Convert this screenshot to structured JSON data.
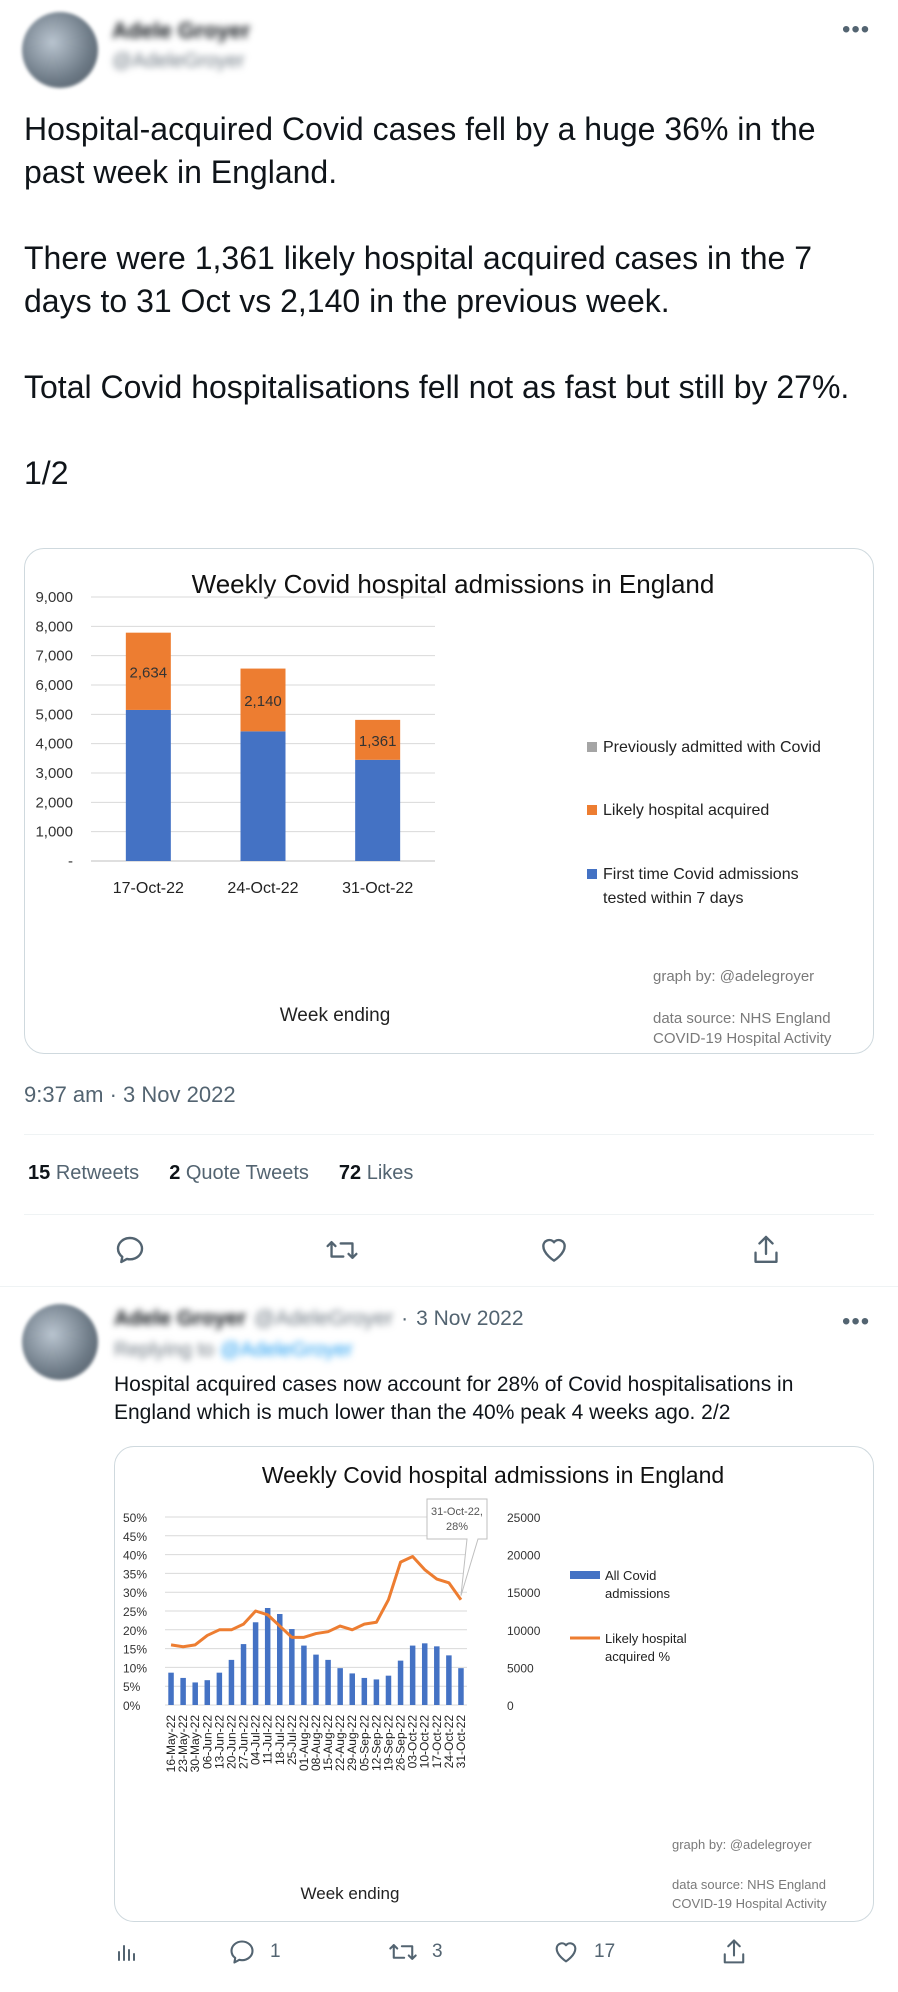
{
  "tweet1": {
    "author_name": "Adele Groyer",
    "author_handle": "@AdeleGroyer",
    "paragraphs": [
      "Hospital-acquired Covid cases fell by a huge 36% in the past week in England.",
      "There were 1,361 likely hospital acquired cases in the 7 days to 31 Oct vs 2,140 in the previous week.",
      "Total Covid hospitalisations fell not as fast but still by 27%.",
      "1/2"
    ],
    "timestamp": "9:37 am · 3 Nov 2022",
    "stats": {
      "retweets_count": "15",
      "retweets_label": "Retweets",
      "quotes_count": "2",
      "quotes_label": "Quote Tweets",
      "likes_count": "72",
      "likes_label": "Likes"
    }
  },
  "tweet2": {
    "author_name": "Adele Groyer",
    "author_handle": "@AdeleGroyer",
    "separator": "·",
    "date": "3 Nov 2022",
    "replying_prefix": "Replying to",
    "replying_handle": "@AdeleGroyer",
    "text": "Hospital acquired cases now account for 28% of Covid hospitalisations in England which is much lower than the 40% peak 4 weeks ago.  2/2",
    "replies": "1",
    "retweets": "3",
    "likes": "17"
  },
  "colors": {
    "blue": "#4472c4",
    "orange": "#ed7d31",
    "grey": "#a5a5a5",
    "accent": "#1d9bf0"
  },
  "chart_data": [
    {
      "type": "bar",
      "stacked": true,
      "title": "Weekly Covid hospital admissions in England",
      "xlabel": "Week ending",
      "ylabel": "",
      "ylim": [
        0,
        9000
      ],
      "yticks": [
        "-",
        "1,000",
        "2,000",
        "3,000",
        "4,000",
        "5,000",
        "6,000",
        "7,000",
        "8,000",
        "9,000"
      ],
      "categories": [
        "17-Oct-22",
        "24-Oct-22",
        "31-Oct-22"
      ],
      "series": [
        {
          "name": "First time Covid admissions tested within 7 days",
          "legend_lines": [
            "First time Covid admissions",
            "tested within 7 days"
          ],
          "values": [
            5150,
            4420,
            3450
          ]
        },
        {
          "name": "Likely hospital acquired",
          "legend_lines": [
            "Likely hospital acquired"
          ],
          "values": [
            2634,
            2140,
            1361
          ],
          "data_labels": [
            "2,634",
            "2,140",
            "1,361"
          ]
        },
        {
          "name": "Previously admitted with Covid",
          "legend_lines": [
            "Previously admitted with Covid"
          ],
          "values": [
            0,
            0,
            0
          ]
        }
      ],
      "legend": "right",
      "credit": "graph by: @adelegroyer",
      "source_lines": [
        "data source: NHS England",
        "COVID-19 Hospital Activity"
      ]
    },
    {
      "type": "bar+line",
      "title": "Weekly Covid hospital admissions in England",
      "xlabel": "Week ending",
      "categories": [
        "16-May-22",
        "23-May-22",
        "30-May-22",
        "06-Jun-22",
        "13-Jun-22",
        "20-Jun-22",
        "27-Jun-22",
        "04-Jul-22",
        "11-Jul-22",
        "18-Jul-22",
        "25-Jul-22",
        "01-Aug-22",
        "08-Aug-22",
        "15-Aug-22",
        "22-Aug-22",
        "29-Aug-22",
        "05-Sep-22",
        "12-Sep-22",
        "19-Sep-22",
        "26-Sep-22",
        "03-Oct-22",
        "10-Oct-22",
        "17-Oct-22",
        "24-Oct-22",
        "31-Oct-22"
      ],
      "left_axis": {
        "ylim": [
          0,
          0.5
        ],
        "ticks": [
          "0%",
          "5%",
          "10%",
          "15%",
          "20%",
          "25%",
          "30%",
          "35%",
          "40%",
          "45%",
          "50%"
        ]
      },
      "right_axis": {
        "ylim": [
          0,
          25000
        ],
        "ticks": [
          "0",
          "5000",
          "10000",
          "15000",
          "20000",
          "25000"
        ]
      },
      "series": [
        {
          "name": "All Covid admissions",
          "legend_lines": [
            "All Covid",
            "admissions"
          ],
          "type": "bar",
          "axis": "right",
          "values": [
            4300,
            3600,
            3000,
            3300,
            4300,
            6000,
            8100,
            11000,
            12900,
            12100,
            10100,
            7900,
            6700,
            6000,
            4900,
            4200,
            3600,
            3400,
            3900,
            5900,
            7900,
            8200,
            7800,
            6600,
            4900
          ]
        },
        {
          "name": "Likely hospital acquired %",
          "legend_lines": [
            "Likely hospital",
            "acquired %"
          ],
          "type": "line",
          "axis": "left",
          "values": [
            0.16,
            0.155,
            0.16,
            0.185,
            0.2,
            0.2,
            0.215,
            0.25,
            0.24,
            0.21,
            0.18,
            0.18,
            0.19,
            0.195,
            0.21,
            0.2,
            0.215,
            0.22,
            0.28,
            0.38,
            0.395,
            0.36,
            0.335,
            0.325,
            0.28
          ]
        }
      ],
      "callout": {
        "lines": [
          "31-Oct-22,",
          "28%"
        ]
      },
      "legend": "right",
      "credit": "graph by: @adelegroyer",
      "source_lines": [
        "data source: NHS England",
        "COVID-19 Hospital Activity"
      ]
    }
  ]
}
